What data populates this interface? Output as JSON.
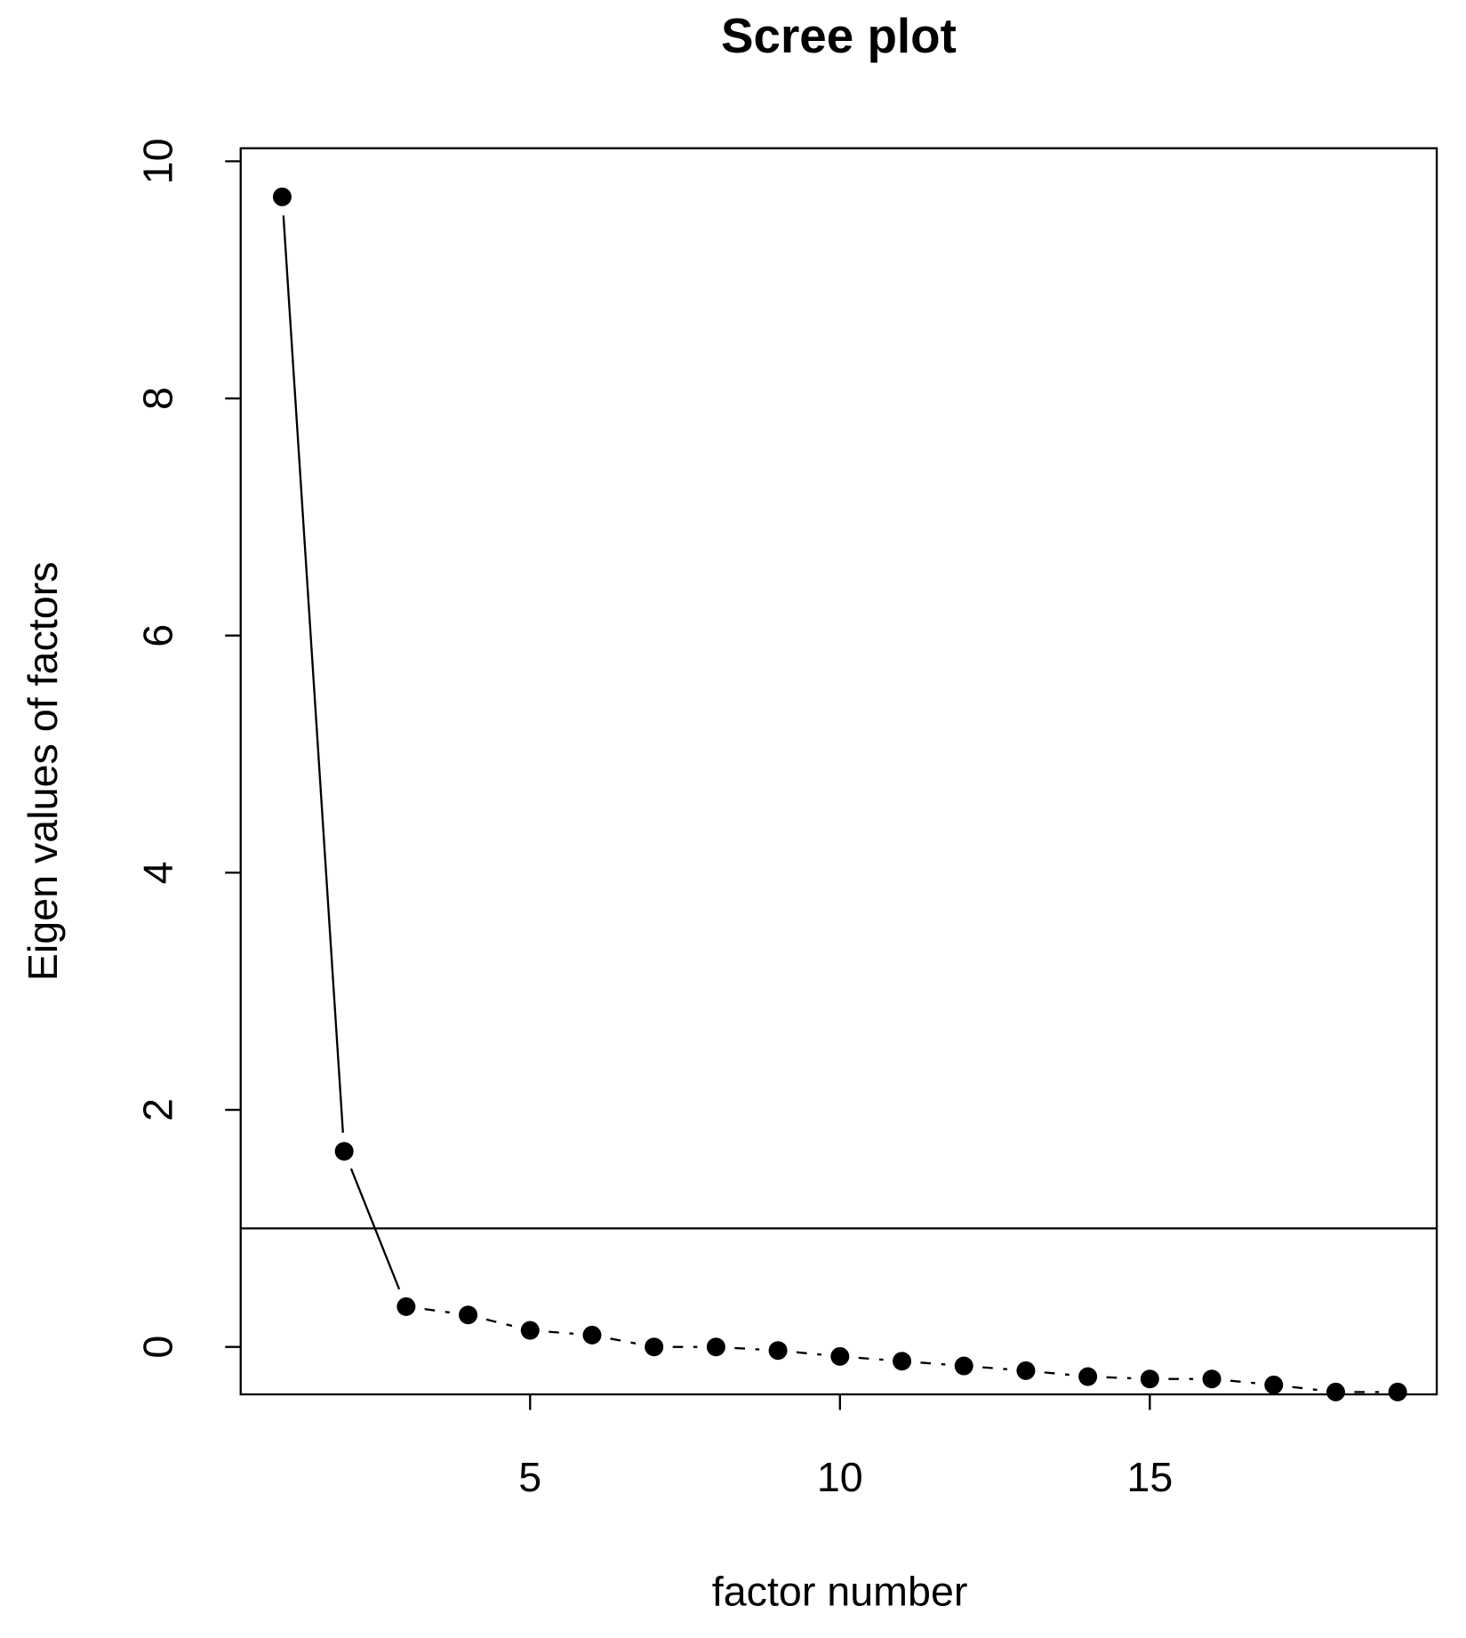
{
  "chart_data": {
    "type": "line",
    "title": "Scree plot",
    "x_label": "factor number",
    "y_label": "Eigen values of factors",
    "x": [
      1,
      2,
      3,
      4,
      5,
      6,
      7,
      8,
      9,
      10,
      11,
      12,
      13,
      14,
      15,
      16,
      17,
      18,
      19
    ],
    "series": [
      {
        "color": "#000000",
        "values": [
          9.7,
          1.65,
          0.34,
          0.27,
          0.14,
          0.1,
          0.0,
          0.0,
          -0.03,
          -0.08,
          -0.12,
          -0.16,
          -0.2,
          -0.25,
          -0.27,
          -0.27,
          -0.32,
          -0.38,
          -0.38
        ]
      }
    ],
    "segment_styles": [
      "solid",
      "solid",
      "dashed",
      "dashed",
      "dashed",
      "dashed",
      "dashed",
      "dashed",
      "dashed",
      "dashed",
      "dashed",
      "dashed",
      "dashed",
      "dashed",
      "dashed",
      "dashed",
      "dashed",
      "dashed"
    ],
    "hline": 1,
    "xlim": [
      0.33,
      19.63
    ],
    "ylim": [
      -0.4,
      10.11
    ],
    "xticks": [
      5,
      10,
      15
    ],
    "yticks": [
      0,
      2,
      4,
      6,
      8,
      10
    ]
  }
}
